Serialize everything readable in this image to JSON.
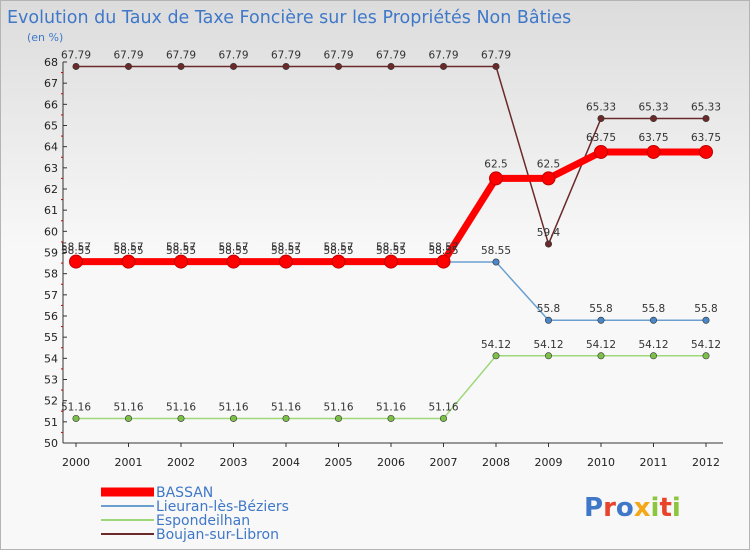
{
  "chart_data": {
    "type": "line",
    "title": "Evolution du Taux de Taxe Foncière sur les Propriétés Non Bâties",
    "unit_label": "(en %)",
    "ylim": [
      50,
      68
    ],
    "y_ticks": [
      "50",
      "51",
      "52",
      "53",
      "54",
      "55",
      "56",
      "57",
      "58",
      "59",
      "60",
      "61",
      "62",
      "63",
      "64",
      "65",
      "66",
      "67",
      "68"
    ],
    "categories": [
      "2000",
      "2001",
      "2002",
      "2003",
      "2004",
      "2005",
      "2006",
      "2007",
      "2008",
      "2009",
      "2010",
      "2011",
      "2012"
    ],
    "series": [
      {
        "name": "Boujan-sur-Libron",
        "color": "#6b2a2a",
        "marker": "#6b2a2a",
        "values": [
          67.79,
          67.79,
          67.79,
          67.79,
          67.79,
          67.79,
          67.79,
          67.79,
          67.79,
          59.4,
          65.33,
          65.33,
          65.33
        ],
        "labels": [
          "67.79",
          "67.79",
          "67.79",
          "67.79",
          "67.79",
          "67.79",
          "67.79",
          "67.79",
          "67.79",
          "59.4",
          "65.33",
          "65.33",
          "65.33"
        ]
      },
      {
        "name": "Espondeilhan",
        "color": "#9ed87a",
        "marker": "#7cc04a",
        "values": [
          51.16,
          51.16,
          51.16,
          51.16,
          51.16,
          51.16,
          51.16,
          51.16,
          54.12,
          54.12,
          54.12,
          54.12,
          54.12
        ],
        "labels": [
          "51.16",
          "51.16",
          "51.16",
          "51.16",
          "51.16",
          "51.16",
          "51.16",
          "51.16",
          "54.12",
          "54.12",
          "54.12",
          "54.12",
          "54.12"
        ]
      },
      {
        "name": "Lieuran-lès-Béziers",
        "color": "#6a9fd0",
        "marker": "#4a86c8",
        "values": [
          58.55,
          58.55,
          58.55,
          58.55,
          58.55,
          58.55,
          58.55,
          58.55,
          58.55,
          55.8,
          55.8,
          55.8,
          55.8
        ],
        "labels": [
          "58.55",
          "58.55",
          "58.55",
          "58.55",
          "58.55",
          "58.55",
          "58.55",
          "58.55",
          "58.55",
          "55.8",
          "55.8",
          "55.8",
          "55.8"
        ]
      },
      {
        "name": "BASSAN",
        "color": "#ff0000",
        "marker": "#ff0000",
        "values": [
          58.57,
          58.57,
          58.57,
          58.57,
          58.57,
          58.57,
          58.57,
          58.57,
          62.5,
          62.5,
          63.75,
          63.75,
          63.75
        ],
        "labels": [
          "58.57",
          "58.57",
          "58.57",
          "58.57",
          "58.57",
          "58.57",
          "58.57",
          "58.57",
          "62.5",
          "62.5",
          "63.75",
          "63.75",
          "63.75"
        ]
      }
    ],
    "legend": [
      "BASSAN",
      "Lieuran-lès-Béziers",
      "Espondeilhan",
      "Boujan-sur-Libron"
    ],
    "legend_position": "bottom-left",
    "grid": false
  },
  "branding": {
    "logo_text": "Proxiti",
    "logo_letters": [
      "P",
      "r",
      "o",
      "x",
      "i",
      "t",
      "i"
    ],
    "logo_colors": [
      "#3f78c8",
      "#e8442c",
      "#3f78c8",
      "#f4a818",
      "#8cc63f",
      "#e8442c",
      "#8cc63f"
    ]
  }
}
